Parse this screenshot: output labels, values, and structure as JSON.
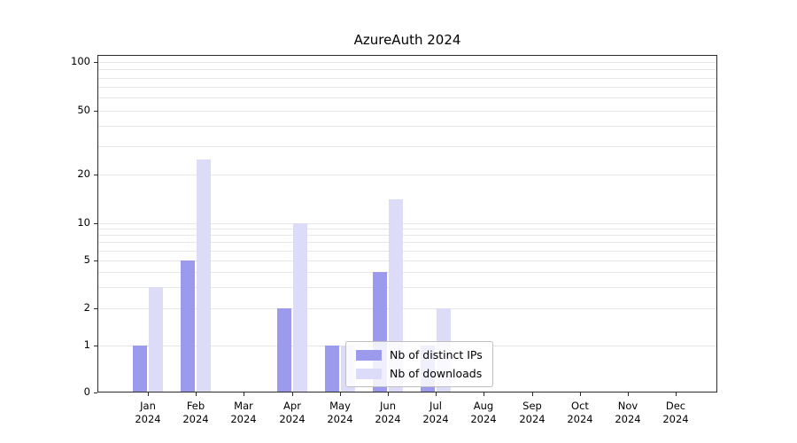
{
  "chart_data": {
    "type": "bar",
    "title": "AzureAuth 2024",
    "categories": [
      "Jan",
      "Feb",
      "Mar",
      "Apr",
      "May",
      "Jun",
      "Jul",
      "Aug",
      "Sep",
      "Oct",
      "Nov",
      "Dec"
    ],
    "year_label": "2024",
    "series": [
      {
        "name": "Nb of distinct IPs",
        "color": "#9b9aec",
        "values": [
          1,
          5,
          0,
          2,
          1,
          4,
          1,
          0,
          0,
          0,
          0,
          0
        ]
      },
      {
        "name": "Nb of downloads",
        "color": "#dcdcf9",
        "values": [
          3,
          25,
          0,
          10,
          1,
          14,
          2,
          0,
          0,
          0,
          0,
          0
        ]
      }
    ],
    "xlabel": "",
    "ylabel": "",
    "y_ticks": [
      0,
      1,
      2,
      5,
      10,
      20,
      50,
      100
    ],
    "ylim": [
      0,
      100
    ],
    "scale": "symlog",
    "grid": "horizontal-minor-log",
    "grid_color": "#e6e6e6",
    "legend_position": "lower-center-inside"
  }
}
